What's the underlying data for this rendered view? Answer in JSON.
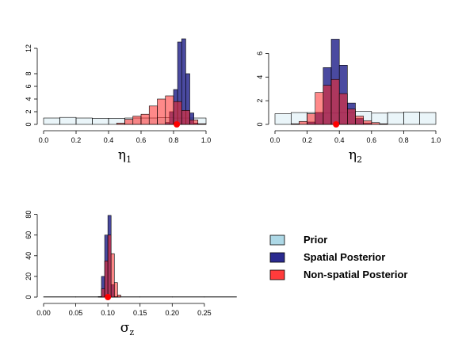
{
  "chart_data": [
    {
      "type": "histogram",
      "xlabel": "η",
      "xlabel_sub": "1",
      "xlim": [
        0,
        1
      ],
      "ylim": [
        0,
        14
      ],
      "xticks": [
        "0.0",
        "0.2",
        "0.4",
        "0.6",
        "0.8",
        "1.0"
      ],
      "yticks": [
        "0",
        "2",
        "4",
        "6",
        "8",
        "12"
      ],
      "ytick_values": [
        0,
        2,
        4,
        6,
        8,
        12
      ],
      "true_value": 0.82,
      "series": [
        {
          "name": "Prior",
          "bin_width": 0.1,
          "x0": 0.0,
          "values": [
            1.0,
            1.1,
            1.0,
            0.95,
            0.95,
            1.0,
            1.0,
            1.05,
            1.0,
            1.0
          ]
        },
        {
          "name": "Spatial Posterior",
          "bin_width": 0.025,
          "x0": 0.75,
          "values": [
            0.3,
            2.0,
            5.5,
            13.0,
            13.5,
            8.0,
            1.8,
            0.2
          ]
        },
        {
          "name": "Non-spatial Posterior",
          "bin_width": 0.05,
          "x0": 0.45,
          "values": [
            0.2,
            0.8,
            1.3,
            1.6,
            2.9,
            4.0,
            4.5,
            3.6,
            2.2,
            0.7,
            0.1
          ]
        }
      ]
    },
    {
      "type": "histogram",
      "xlabel": "η",
      "xlabel_sub": "2",
      "xlim": [
        0,
        1
      ],
      "ylim": [
        0,
        7.5
      ],
      "xticks": [
        "0.0",
        "0.2",
        "0.4",
        "0.6",
        "0.8",
        "1.0"
      ],
      "yticks": [
        "0",
        "2",
        "4",
        "6"
      ],
      "ytick_values": [
        0,
        2,
        4,
        6
      ],
      "true_value": 0.38,
      "series": [
        {
          "name": "Prior",
          "bin_width": 0.1,
          "x0": 0.0,
          "values": [
            0.9,
            1.0,
            1.0,
            0.95,
            1.0,
            1.1,
            0.95,
            1.0,
            1.05,
            1.0
          ]
        },
        {
          "name": "Spatial Posterior",
          "bin_width": 0.05,
          "x0": 0.2,
          "values": [
            0.2,
            1.0,
            4.8,
            7.2,
            5.0,
            1.8,
            0.5,
            0.1
          ]
        },
        {
          "name": "Non-spatial Posterior",
          "bin_width": 0.05,
          "x0": 0.1,
          "values": [
            0.05,
            0.25,
            0.9,
            2.7,
            3.3,
            3.8,
            2.6,
            1.3,
            0.7,
            0.3,
            0.15,
            0.05
          ]
        }
      ]
    },
    {
      "type": "histogram",
      "xlabel": "σ",
      "xlabel_sub": "z",
      "xlim": [
        0,
        0.26
      ],
      "ylim": [
        0,
        82
      ],
      "xticks": [
        "0.00",
        "0.05",
        "0.10",
        "0.15",
        "0.20",
        "0.25"
      ],
      "xtick_values": [
        0,
        0.05,
        0.1,
        0.15,
        0.2,
        0.25
      ],
      "yticks": [
        "0",
        "20",
        "40",
        "60",
        "80"
      ],
      "ytick_values": [
        0,
        20,
        40,
        60,
        80
      ],
      "true_value": 0.1,
      "series": [
        {
          "name": "Prior",
          "bin_width": 0.05,
          "x0": 0.0,
          "values": [
            0.3,
            0.3,
            0.3,
            0.3,
            0.3,
            0.3
          ]
        },
        {
          "name": "Spatial Posterior",
          "bin_width": 0.005,
          "x0": 0.085,
          "values": [
            0.5,
            20,
            60,
            79,
            12,
            0.5
          ]
        },
        {
          "name": "Non-spatial Posterior",
          "bin_width": 0.005,
          "x0": 0.085,
          "values": [
            0.2,
            8,
            35,
            60,
            42,
            14,
            2
          ]
        }
      ]
    }
  ],
  "legend": {
    "items": [
      {
        "label": "Prior",
        "color": "#add8e6"
      },
      {
        "label": "Spatial Posterior",
        "color": "#2a2a8f"
      },
      {
        "label": "Non-spatial Posterior",
        "color": "#ff3b3b"
      }
    ]
  },
  "colors": {
    "prior_fill": "rgba(173,216,230,0.25)",
    "spatial_fill": "rgba(42,42,143,0.85)",
    "nonspatial_fill": "rgba(255,40,40,0.55)",
    "true_point": "#ff0000"
  }
}
